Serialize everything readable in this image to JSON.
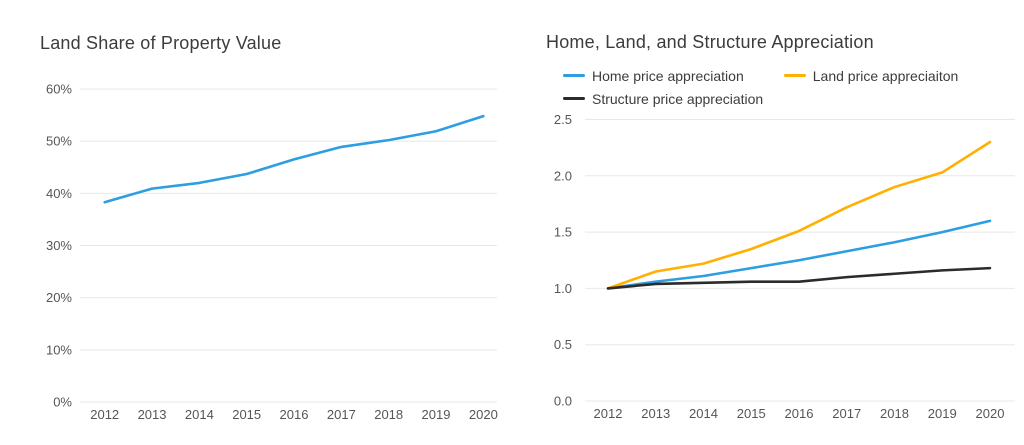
{
  "page": {
    "background": "#ffffff",
    "accent_blue": "#2D9EE0",
    "accent_yellow": "#FFB000",
    "accent_black": "#2B2B2B",
    "grid_color": "#E8E8E8",
    "title_color": "#3C3C3C",
    "tick_color": "#565656"
  },
  "chart_data": [
    {
      "id": "land-share",
      "type": "line",
      "title": "Land Share of Property Value",
      "categories": [
        "2012",
        "2013",
        "2014",
        "2015",
        "2016",
        "2017",
        "2018",
        "2019",
        "2020"
      ],
      "series": [
        {
          "name": "Land share of property value",
          "color": "#2D9EE0",
          "values": [
            38.3,
            40.9,
            42.0,
            43.7,
            46.5,
            48.9,
            50.2,
            51.9,
            54.8
          ]
        }
      ],
      "xlabel": "",
      "ylabel": "",
      "ylim": [
        0,
        60
      ],
      "yticks": [
        0,
        10,
        20,
        30,
        40,
        50,
        60
      ],
      "ytick_labels": [
        "0%",
        "10%",
        "20%",
        "30%",
        "40%",
        "50%",
        "60%"
      ],
      "grid": true,
      "legend": false
    },
    {
      "id": "appreciation",
      "type": "line",
      "title": "Home, Land, and Structure Appreciation",
      "categories": [
        "2012",
        "2013",
        "2014",
        "2015",
        "2016",
        "2017",
        "2018",
        "2019",
        "2020"
      ],
      "series": [
        {
          "name": "Home price appreciation",
          "color": "#2D9EE0",
          "values": [
            1.0,
            1.06,
            1.11,
            1.18,
            1.25,
            1.33,
            1.41,
            1.5,
            1.6
          ]
        },
        {
          "name": "Land price appreciaiton",
          "color": "#FFB000",
          "values": [
            1.0,
            1.15,
            1.22,
            1.35,
            1.51,
            1.72,
            1.9,
            2.03,
            2.3
          ]
        },
        {
          "name": "Structure price appreciation",
          "color": "#2B2B2B",
          "values": [
            1.0,
            1.04,
            1.05,
            1.06,
            1.06,
            1.1,
            1.13,
            1.16,
            1.18
          ]
        }
      ],
      "xlabel": "",
      "ylabel": "",
      "ylim": [
        0,
        2.5
      ],
      "yticks": [
        0,
        0.5,
        1,
        1.5,
        2,
        2.5
      ],
      "ytick_labels": [
        "0.0",
        "0.5",
        "1.0",
        "1.5",
        "2.0",
        "2.5"
      ],
      "grid": true,
      "legend": true,
      "legend_position": "top-left"
    }
  ]
}
